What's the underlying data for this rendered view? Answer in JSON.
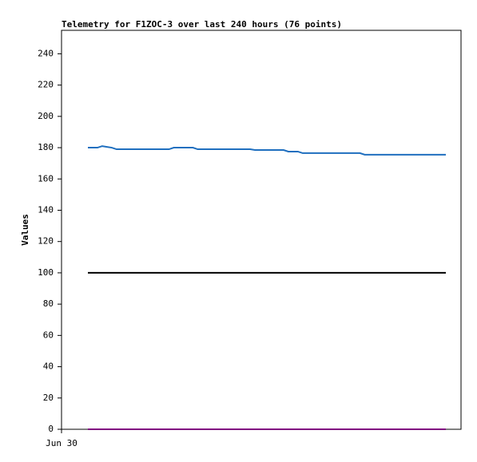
{
  "chart_data": {
    "type": "line",
    "title": "Telemetry for F1ZOC-3 over last 240 hours (76 points)",
    "y_label": "Values",
    "x_tick_label": "Jun 30",
    "categories": [
      null,
      null,
      null,
      null,
      null,
      null,
      null,
      null,
      null,
      null,
      null,
      null,
      null,
      null,
      null,
      null,
      null,
      null,
      null,
      null,
      null,
      null,
      null,
      null,
      null,
      null,
      null,
      null,
      null,
      null,
      null,
      null,
      null,
      null,
      null,
      null,
      null,
      null,
      null,
      null,
      null,
      null,
      null,
      null,
      null,
      null,
      null,
      null,
      null,
      null,
      null,
      null,
      null,
      null,
      null,
      null,
      null,
      null,
      null,
      null,
      null,
      null,
      null,
      null,
      null,
      null,
      null,
      null,
      null,
      null,
      null,
      null,
      null,
      null,
      null,
      null
    ],
    "ylim": [
      0,
      255
    ],
    "yticks": [
      0,
      20,
      40,
      60,
      80,
      100,
      120,
      140,
      160,
      180,
      200,
      220,
      240
    ],
    "series": [
      {
        "color": "#1f6fbf",
        "values": [
          180,
          180,
          180,
          181,
          180.5,
          180,
          179,
          179,
          179,
          179,
          179,
          179,
          179,
          179,
          179,
          179,
          179,
          179,
          180,
          180,
          180,
          180,
          180,
          179,
          179,
          179,
          179,
          179,
          179,
          179,
          179,
          179,
          179,
          179,
          179,
          178.5,
          178.5,
          178.5,
          178.5,
          178.5,
          178.5,
          178.5,
          177.5,
          177.5,
          177.5,
          176.5,
          176.5,
          176.5,
          176.5,
          176.5,
          176.5,
          176.5,
          176.5,
          176.5,
          176.5,
          176.5,
          176.5,
          176.5,
          175.5,
          175.5,
          175.5,
          175.5,
          175.5,
          175.5,
          175.5,
          175.5,
          175.5,
          175.5,
          175.5,
          175.5,
          175.5,
          175.5,
          175.5,
          175.5,
          175.5,
          175.5
        ]
      },
      {
        "color": "#000000",
        "values": [
          100,
          100,
          100,
          100,
          100,
          100,
          100,
          100,
          100,
          100,
          100,
          100,
          100,
          100,
          100,
          100,
          100,
          100,
          100,
          100,
          100,
          100,
          100,
          100,
          100,
          100,
          100,
          100,
          100,
          100,
          100,
          100,
          100,
          100,
          100,
          100,
          100,
          100,
          100,
          100,
          100,
          100,
          100,
          100,
          100,
          100,
          100,
          100,
          100,
          100,
          100,
          100,
          100,
          100,
          100,
          100,
          100,
          100,
          100,
          100,
          100,
          100,
          100,
          100,
          100,
          100,
          100,
          100,
          100,
          100,
          100,
          100,
          100,
          100,
          100,
          100
        ]
      },
      {
        "color": "#800080",
        "values": [
          0,
          0,
          0,
          0,
          0,
          0,
          0,
          0,
          0,
          0,
          0,
          0,
          0,
          0,
          0,
          0,
          0,
          0,
          0,
          0,
          0,
          0,
          0,
          0,
          0,
          0,
          0,
          0,
          0,
          0,
          0,
          0,
          0,
          0,
          0,
          0,
          0,
          0,
          0,
          0,
          0,
          0,
          0,
          0,
          0,
          0,
          0,
          0,
          0,
          0,
          0,
          0,
          0,
          0,
          0,
          0,
          0,
          0,
          0,
          0,
          0,
          0,
          0,
          0,
          0,
          0,
          0,
          0,
          0,
          0,
          0,
          0,
          0,
          0,
          0,
          0
        ]
      }
    ]
  }
}
